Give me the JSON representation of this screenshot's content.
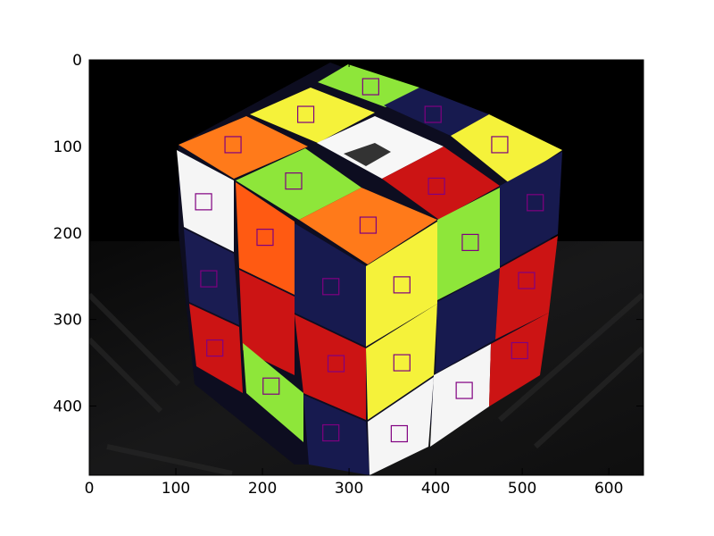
{
  "figure": {
    "image_subject": "",
    "x_axis": {
      "ticks": [
        0,
        100,
        200,
        300,
        400,
        500,
        600
      ],
      "labels": [
        "0",
        "100",
        "200",
        "300",
        "400",
        "500",
        "600"
      ],
      "range": [
        0,
        640
      ]
    },
    "y_axis": {
      "ticks": [
        0,
        100,
        200,
        300,
        400
      ],
      "labels": [
        "0",
        "100",
        "200",
        "300",
        "400"
      ],
      "range": [
        0,
        480
      ],
      "inverted": true
    },
    "marker_color": "#800080",
    "markers": [
      {
        "x": 325,
        "y": 31
      },
      {
        "x": 250,
        "y": 63
      },
      {
        "x": 397,
        "y": 63
      },
      {
        "x": 166,
        "y": 98
      },
      {
        "x": 474,
        "y": 98
      },
      {
        "x": 236,
        "y": 140
      },
      {
        "x": 401,
        "y": 146
      },
      {
        "x": 132,
        "y": 164
      },
      {
        "x": 515,
        "y": 165
      },
      {
        "x": 322,
        "y": 191
      },
      {
        "x": 203,
        "y": 205
      },
      {
        "x": 440,
        "y": 211
      },
      {
        "x": 138,
        "y": 253
      },
      {
        "x": 279,
        "y": 262
      },
      {
        "x": 361,
        "y": 260
      },
      {
        "x": 505,
        "y": 255
      },
      {
        "x": 145,
        "y": 333
      },
      {
        "x": 285,
        "y": 351
      },
      {
        "x": 361,
        "y": 350
      },
      {
        "x": 497,
        "y": 336
      },
      {
        "x": 210,
        "y": 377
      },
      {
        "x": 433,
        "y": 382
      },
      {
        "x": 279,
        "y": 431
      },
      {
        "x": 358,
        "y": 432
      }
    ]
  }
}
